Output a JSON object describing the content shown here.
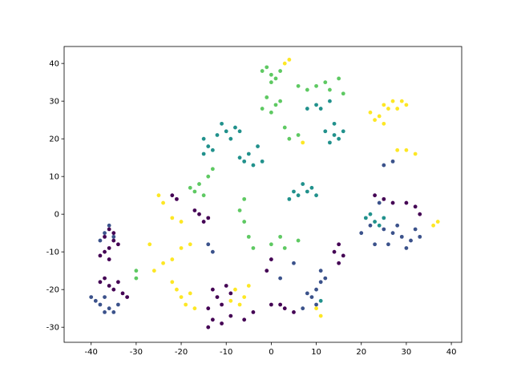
{
  "chart_data": {
    "type": "scatter",
    "xlim": [
      -46,
      42.3
    ],
    "ylim": [
      -34,
      44.5
    ],
    "xticks": [
      -40,
      -30,
      -20,
      -10,
      0,
      10,
      20,
      30,
      40
    ],
    "yticks": [
      -30,
      -20,
      -10,
      0,
      10,
      20,
      30,
      40
    ],
    "series": [
      {
        "color": "#440154",
        "x": [
          -36,
          -37,
          -35,
          -36,
          -37,
          -36,
          -35,
          -34,
          -38,
          -37,
          -36,
          -35,
          -33,
          -34,
          -38,
          -32,
          -13,
          -12,
          -11,
          -14,
          -10,
          -9,
          -13,
          -11,
          -9,
          -14,
          -16,
          -15,
          -17,
          -14,
          -22,
          -21,
          2,
          3,
          0,
          5,
          15,
          16,
          15,
          14,
          25,
          27,
          23,
          32,
          33,
          30,
          -6,
          -4,
          0,
          -1
        ],
        "values": [
          -4,
          -6,
          -7,
          -9,
          -10,
          -12,
          -5,
          -8,
          -11,
          -17,
          -19,
          -20,
          -21,
          -18,
          -18,
          -22,
          -20,
          -22,
          -24,
          -25,
          -19,
          -21,
          -28,
          -29,
          -27,
          -30,
          0,
          -2,
          1,
          -1,
          5,
          4,
          -24,
          -25,
          -24,
          -26,
          -8,
          -11,
          -13,
          -10,
          4,
          3,
          5,
          2,
          0,
          3,
          -28,
          -26,
          -12,
          -15
        ]
      },
      {
        "color": "#3b528b",
        "x": [
          -38,
          -37,
          -36,
          -39,
          -35,
          -40,
          -34,
          -37,
          -37,
          -38,
          -35,
          -36,
          10,
          11,
          9,
          12,
          8,
          10,
          7,
          11,
          27,
          29,
          31,
          25,
          33,
          28,
          30,
          23,
          26,
          32,
          20,
          22,
          25,
          27,
          24,
          5,
          2,
          -13,
          -14
        ],
        "values": [
          -24,
          -26,
          -25,
          -23,
          -26,
          -22,
          -24,
          -22,
          -5,
          -7,
          -6,
          -3,
          -20,
          -18,
          -22,
          -17,
          -21,
          -24,
          -25,
          -15,
          -5,
          -6,
          -7,
          -4,
          -6,
          -3,
          -9,
          -8,
          -8,
          -4,
          -5,
          -3,
          13,
          14,
          3,
          -13,
          -17,
          -10,
          -8
        ]
      },
      {
        "color": "#21918c",
        "x": [
          -15,
          -14,
          -13,
          -15,
          -12,
          -10,
          -8,
          -7,
          -11,
          -9,
          -6,
          -4,
          -2,
          -5,
          -7,
          -3,
          10,
          11,
          13,
          8,
          12,
          14,
          13,
          15,
          16,
          14,
          8,
          9,
          10,
          6,
          7,
          4,
          21,
          23,
          22,
          25,
          24,
          11,
          5
        ],
        "values": [
          20,
          18,
          17,
          16,
          21,
          22,
          23,
          22,
          24,
          20,
          14,
          13,
          14,
          16,
          15,
          18,
          29,
          28,
          30,
          28,
          22,
          21,
          19,
          20,
          22,
          24,
          6,
          7,
          5,
          5,
          8,
          4,
          -1,
          -2,
          0,
          -1,
          -3,
          -23,
          6
        ]
      },
      {
        "color": "#5ec962",
        "x": [
          -2,
          0,
          1,
          -1,
          2,
          0,
          -1,
          1,
          0,
          2,
          -2,
          6,
          8,
          10,
          12,
          15,
          13,
          16,
          -17,
          -16,
          -15,
          -14,
          -18,
          -13,
          -6,
          -7,
          -6,
          -5,
          -4,
          2,
          0,
          3,
          6,
          4,
          6,
          3,
          -30,
          -30
        ],
        "values": [
          38,
          37,
          36,
          39,
          38,
          35,
          31,
          29,
          27,
          30,
          28,
          34,
          33,
          34,
          35,
          36,
          33,
          32,
          6,
          8,
          5,
          10,
          7,
          12,
          4,
          1,
          -2,
          -6,
          -9,
          -6,
          -8,
          -9,
          -7,
          20,
          21,
          23,
          -15,
          -17
        ]
      },
      {
        "color": "#fde725",
        "x": [
          25,
          27,
          29,
          26,
          28,
          30,
          24,
          23,
          25,
          22,
          28,
          30,
          32,
          -20,
          -19,
          -18,
          -21,
          -17,
          -22,
          -8,
          -6,
          -7,
          -5,
          -9,
          -24,
          -22,
          -26,
          -20,
          -18,
          -24,
          -25,
          -20,
          -22,
          -27,
          10,
          11,
          36,
          37,
          7,
          3,
          4
        ],
        "values": [
          29,
          30,
          30,
          28,
          28,
          29,
          26,
          25,
          24,
          27,
          17,
          17,
          16,
          -22,
          -24,
          -21,
          -20,
          -25,
          -18,
          -20,
          -22,
          -24,
          -19,
          -23,
          -13,
          -12,
          -15,
          -9,
          -8,
          3,
          5,
          -2,
          -1,
          -8,
          -25,
          -27,
          -3,
          -2,
          19,
          40,
          41
        ]
      }
    ]
  }
}
